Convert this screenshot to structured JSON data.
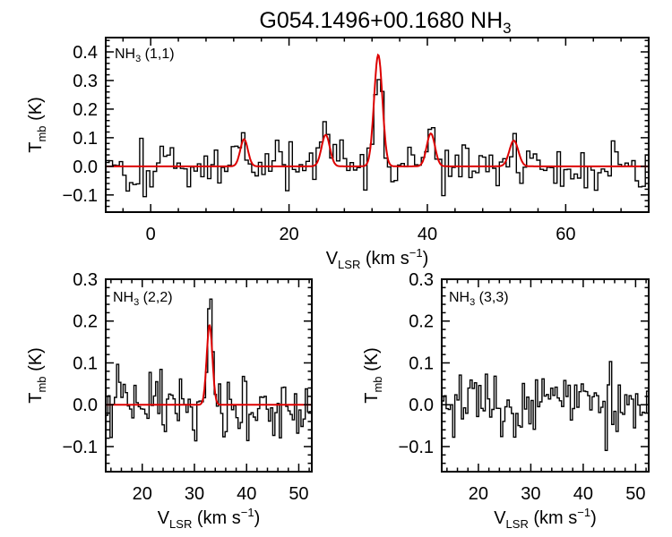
{
  "figure": {
    "title_main": "G054.1496+00.1680 NH",
    "title_sub": "3"
  },
  "axis_text": {
    "y_T": "T",
    "y_sub": "mb",
    "y_unit": " (K)",
    "x_V": "V",
    "x_sub": "LSR",
    "x_unit": " (km s",
    "x_exp": "−1",
    "x_close": ")"
  },
  "colors": {
    "observed": "#000000",
    "fit": "#dd0000"
  },
  "chart_data": [
    {
      "type": "line",
      "label_main": "NH",
      "label_sub": "3",
      "label_trans": " (1,1)",
      "xlim": [
        -6.5,
        72
      ],
      "ylim": [
        -0.16,
        0.45
      ],
      "xticks": [
        0,
        20,
        40,
        60
      ],
      "xtick_labels": [
        "0",
        "20",
        "40",
        "60"
      ],
      "yticks": [
        -0.1,
        0.0,
        0.1,
        0.2,
        0.3,
        0.4
      ],
      "ytick_labels": [
        "−0.1",
        "0.0",
        "0.1",
        "0.2",
        "0.3",
        "0.4"
      ],
      "noise_rms": 0.045,
      "fit_components": [
        {
          "center": 13.5,
          "amplitude": 0.095,
          "sigma": 0.55
        },
        {
          "center": 25.3,
          "amplitude": 0.11,
          "sigma": 0.6
        },
        {
          "center": 32.9,
          "amplitude": 0.39,
          "sigma": 0.6
        },
        {
          "center": 40.5,
          "amplitude": 0.115,
          "sigma": 0.6
        },
        {
          "center": 52.5,
          "amplitude": 0.09,
          "sigma": 0.65
        }
      ],
      "series": [
        {
          "name": "observed",
          "style": "histogram"
        },
        {
          "name": "fit",
          "style": "line"
        }
      ]
    },
    {
      "type": "line",
      "label_main": "NH",
      "label_sub": "3",
      "label_trans": " (2,2)",
      "xlim": [
        13,
        52.5
      ],
      "ylim": [
        -0.16,
        0.3
      ],
      "xticks": [
        20,
        30,
        40,
        50
      ],
      "xtick_labels": [
        "20",
        "30",
        "40",
        "50"
      ],
      "yticks": [
        -0.1,
        0.0,
        0.1,
        0.2,
        0.3
      ],
      "ytick_labels": [
        "−0.1",
        "0.0",
        "0.1",
        "0.2",
        "0.3"
      ],
      "noise_rms": 0.045,
      "fit_components": [
        {
          "center": 32.9,
          "amplitude": 0.19,
          "sigma": 0.55
        }
      ],
      "series": [
        {
          "name": "observed",
          "style": "histogram"
        },
        {
          "name": "fit",
          "style": "line"
        }
      ]
    },
    {
      "type": "line",
      "label_main": "NH",
      "label_sub": "3",
      "label_trans": " (3,3)",
      "xlim": [
        13,
        52.5
      ],
      "ylim": [
        -0.16,
        0.3
      ],
      "xticks": [
        20,
        30,
        40,
        50
      ],
      "xtick_labels": [
        "20",
        "30",
        "40",
        "50"
      ],
      "yticks": [
        -0.1,
        0.0,
        0.1,
        0.2,
        0.3
      ],
      "ytick_labels": [
        "−0.1",
        "0.0",
        "0.1",
        "0.2",
        "0.3"
      ],
      "noise_rms": 0.045,
      "fit_components": [],
      "series": [
        {
          "name": "observed",
          "style": "histogram"
        }
      ]
    }
  ]
}
